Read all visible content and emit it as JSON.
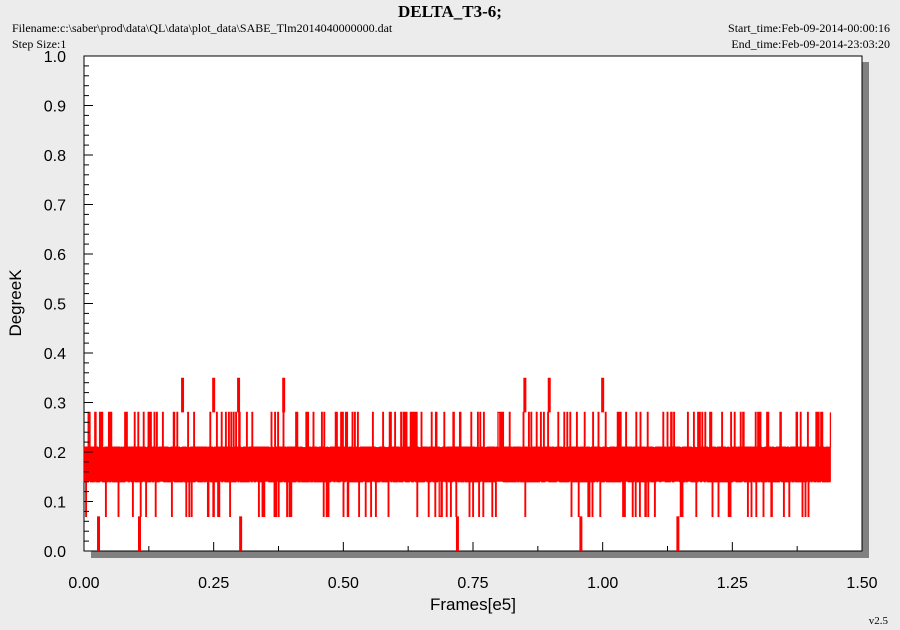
{
  "header": {
    "title": "DELTA_T3-6;",
    "filename": "Filename:c:\\saber\\prod\\data\\QL\\data\\plot_data\\SABE_Tlm2014040000000.dat",
    "step_size": "Step Size:1",
    "start_time": "Start_time:Feb-09-2014-00:00:16",
    "end_time": "End_time:Feb-09-2014-23:03:20",
    "version": "v2.5"
  },
  "colors": {
    "series": "#ff0000",
    "background": "#ececec",
    "plot_bg": "#ffffff",
    "shadow": "#808080"
  },
  "chart_data": {
    "type": "line",
    "title": "DELTA_T3-6;",
    "xlabel": "Frames[e5]",
    "ylabel": "DegreeK",
    "xlim": [
      0,
      1.5
    ],
    "ylim": [
      0,
      1.0
    ],
    "xticks": [
      "0.00",
      "0.25",
      "0.50",
      "0.75",
      "1.00",
      "1.25",
      "1.50"
    ],
    "yticks": [
      "0.0",
      "0.1",
      "0.2",
      "0.3",
      "0.4",
      "0.5",
      "0.6",
      "0.7",
      "0.8",
      "0.9",
      "1.0"
    ],
    "grid": false,
    "series": [
      {
        "color": "#ff0000",
        "x_range": [
          0,
          1.44
        ],
        "level_values": [
          0.07,
          0.14,
          0.21,
          0.28
        ],
        "dense_band": [
          0.14,
          0.21
        ],
        "spikes_high": [
          {
            "x": 0.19,
            "y": 0.35
          },
          {
            "x": 0.25,
            "y": 0.35
          },
          {
            "x": 0.298,
            "y": 0.35
          },
          {
            "x": 0.385,
            "y": 0.35
          },
          {
            "x": 0.85,
            "y": 0.35
          },
          {
            "x": 0.897,
            "y": 0.35
          },
          {
            "x": 1.0,
            "y": 0.35
          }
        ],
        "spikes_low": [
          {
            "x": 0.028,
            "y": 0.0
          },
          {
            "x": 0.107,
            "y": 0.0
          },
          {
            "x": 0.302,
            "y": 0.0
          },
          {
            "x": 0.72,
            "y": 0.0
          },
          {
            "x": 0.958,
            "y": 0.0
          },
          {
            "x": 1.145,
            "y": 0.0
          }
        ]
      }
    ]
  }
}
